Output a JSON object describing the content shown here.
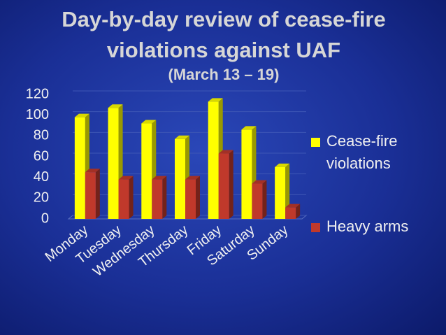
{
  "chart_data": {
    "type": "bar",
    "title": "Day-by-day review of cease-fire violations against UAF",
    "subtitle": "(March 13 – 19)",
    "categories": [
      "Monday",
      "Tuesday",
      "Wednesday",
      "Thursday",
      "Friday",
      "Saturday",
      "Sunday"
    ],
    "series": [
      {
        "name": "Cease-fire violations",
        "color": "#ffff00",
        "values": [
          98,
          107,
          92,
          77,
          113,
          86,
          50
        ]
      },
      {
        "name": "Heavy arms",
        "color": "#c0392b",
        "values": [
          45,
          38,
          38,
          38,
          63,
          34,
          11
        ]
      }
    ],
    "ylim": [
      0,
      120
    ],
    "yticks": [
      0,
      20,
      40,
      60,
      80,
      100,
      120
    ],
    "grid": true,
    "legend": "right"
  }
}
